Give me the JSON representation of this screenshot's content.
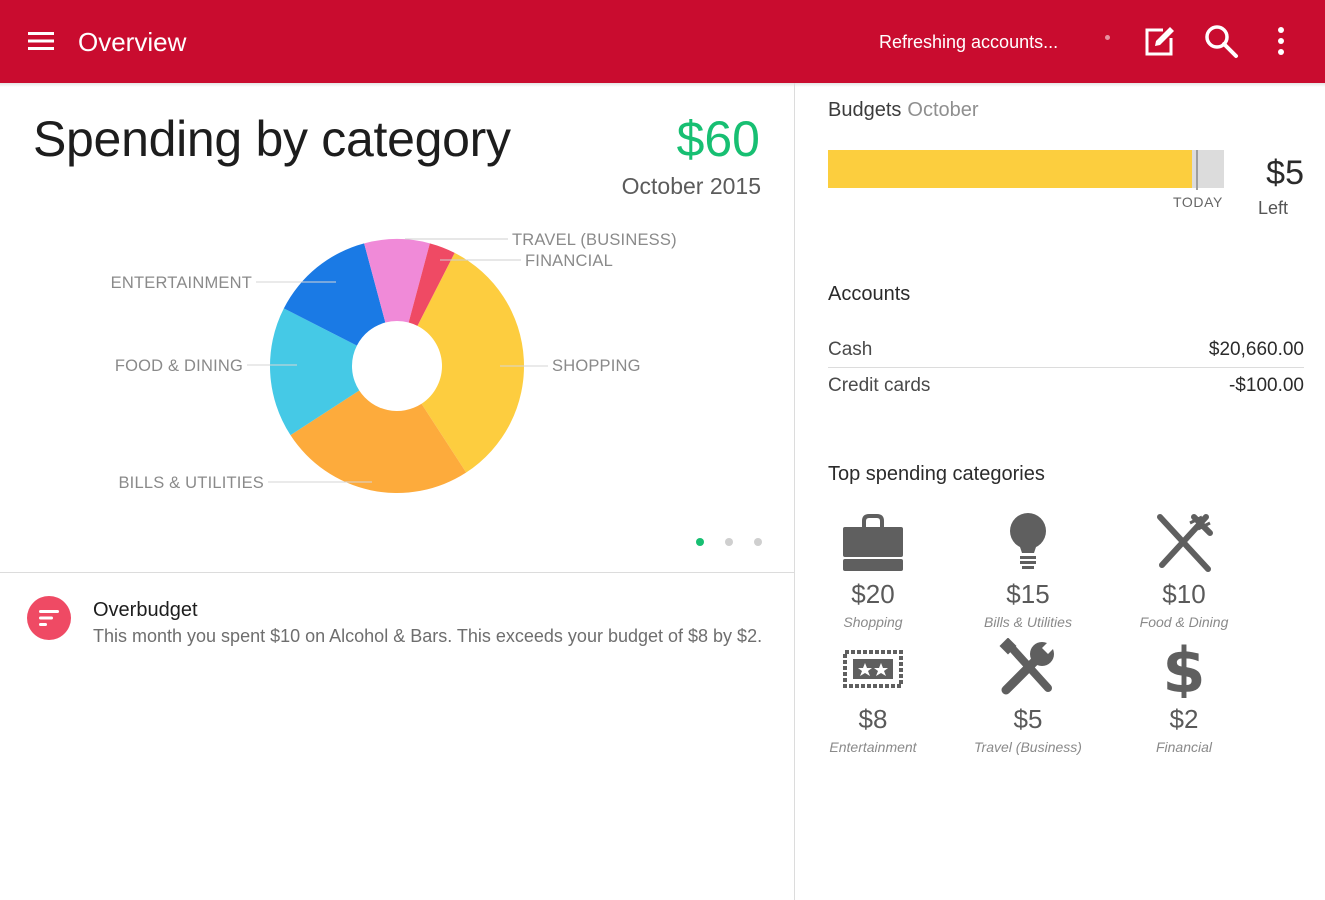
{
  "app_bar": {
    "title": "Overview",
    "status": "Refreshing accounts...",
    "icons": [
      "menu-icon",
      "edit-icon",
      "search-icon",
      "more-vert-icon"
    ]
  },
  "spending": {
    "title": "Spending by category",
    "total": "$60",
    "period": "October 2015",
    "pager": {
      "pages": 3,
      "active": 0
    }
  },
  "chart_data": {
    "type": "pie",
    "donut": true,
    "series": [
      {
        "label": "SHOPPING",
        "value": 20,
        "color": "#fdcd3f"
      },
      {
        "label": "BILLS & UTILITIES",
        "value": 15,
        "color": "#fdab3c"
      },
      {
        "label": "FOOD & DINING",
        "value": 10,
        "color": "#45c9e6"
      },
      {
        "label": "ENTERTAINMENT",
        "value": 8,
        "color": "#1a7ae5"
      },
      {
        "label": "TRAVEL (BUSINESS)",
        "value": 5,
        "color": "#f08ad8"
      },
      {
        "label": "FINANCIAL",
        "value": 2,
        "color": "#ef4a64"
      }
    ]
  },
  "alert": {
    "title": "Overbudget",
    "body": "This month you spent $10 on Alcohol & Bars. This exceeds your budget of $8 by $2.",
    "icon": "list-alert-icon",
    "color": "#ef4a64"
  },
  "budgets": {
    "label": "Budgets",
    "month": "October",
    "progress": 0.92,
    "today_progress": 0.93,
    "today_label": "TODAY",
    "left_amount": "$5",
    "left_label": "Left"
  },
  "accounts": {
    "title": "Accounts",
    "rows": [
      {
        "name": "Cash",
        "value": "$20,660.00"
      },
      {
        "name": "Credit cards",
        "value": "-$100.00"
      }
    ]
  },
  "top_categories": {
    "title": "Top spending categories",
    "items": [
      {
        "amount": "$20",
        "name": "Shopping",
        "icon": "shopping-bag-icon"
      },
      {
        "amount": "$15",
        "name": "Bills & Utilities",
        "icon": "lightbulb-icon"
      },
      {
        "amount": "$10",
        "name": "Food & Dining",
        "icon": "fork-knife-icon"
      },
      {
        "amount": "$8",
        "name": "Entertainment",
        "icon": "ticket-icon"
      },
      {
        "amount": "$5",
        "name": "Travel (Business)",
        "icon": "wrench-icon"
      },
      {
        "amount": "$2",
        "name": "Financial",
        "icon": "dollar-icon"
      }
    ]
  }
}
